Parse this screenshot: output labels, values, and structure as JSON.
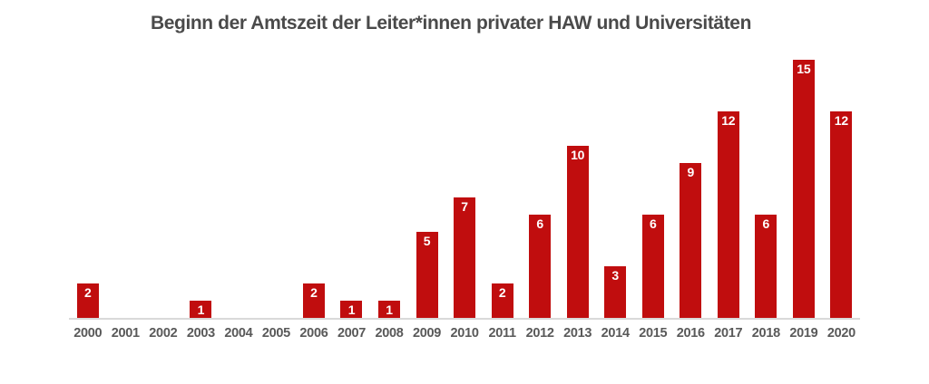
{
  "chart_data": {
    "type": "bar",
    "title": "Beginn der Amtszeit der Leiter*innen privater HAW und Universitäten",
    "categories": [
      "2000",
      "2001",
      "2002",
      "2003",
      "2004",
      "2005",
      "2006",
      "2007",
      "2008",
      "2009",
      "2010",
      "2011",
      "2012",
      "2013",
      "2014",
      "2015",
      "2016",
      "2017",
      "2018",
      "2019",
      "2020"
    ],
    "values": [
      2,
      0,
      0,
      1,
      0,
      0,
      2,
      1,
      1,
      5,
      7,
      2,
      6,
      10,
      3,
      6,
      9,
      12,
      6,
      15,
      12
    ],
    "xlabel": "",
    "ylabel": "",
    "ylim": [
      0,
      15
    ],
    "grid": false,
    "legend": false,
    "data_labels": "white, bold, inside top of bar",
    "colors": {
      "bar": "#c00d0e",
      "bar_label": "#ffffff",
      "title": "#4a4a4a",
      "axis_text": "#595959",
      "baseline": "#d9d9d9",
      "background": "#ffffff"
    }
  }
}
